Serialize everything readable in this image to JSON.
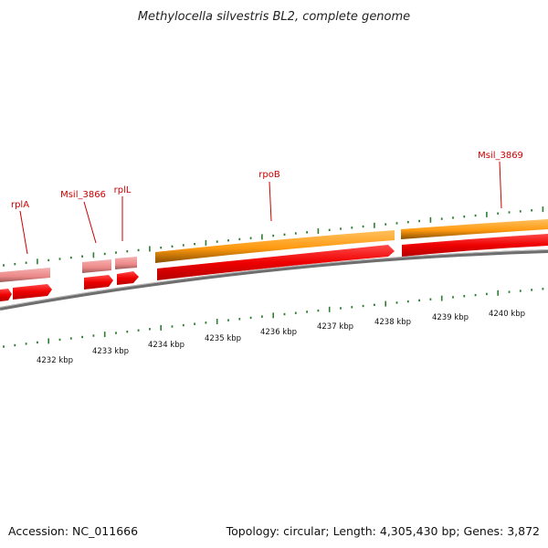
{
  "title": "Methylocella silvestris BL2, complete genome",
  "footer": {
    "accession": "Accession: NC_011666",
    "info": "Topology: circular; Length: 4,305,430 bp; Genes: 3,872"
  },
  "scale_labels": [
    "4232 kbp",
    "4233 kbp",
    "4234 kbp",
    "4235 kbp",
    "4236 kbp",
    "4237 kbp",
    "4238 kbp",
    "4239 kbp",
    "4240 kbp"
  ],
  "gene_labels": [
    "rplA",
    "Msil_3866",
    "rplL",
    "rpoB",
    "Msil_3869"
  ],
  "colors": {
    "tick": "#2e7d32",
    "backbone": "#7a7a7a",
    "gene_red": "#ee0000",
    "gene_pink": "#ee8a8a",
    "gene_orange": "#ff9a10",
    "label_red": "#cc0000"
  }
}
